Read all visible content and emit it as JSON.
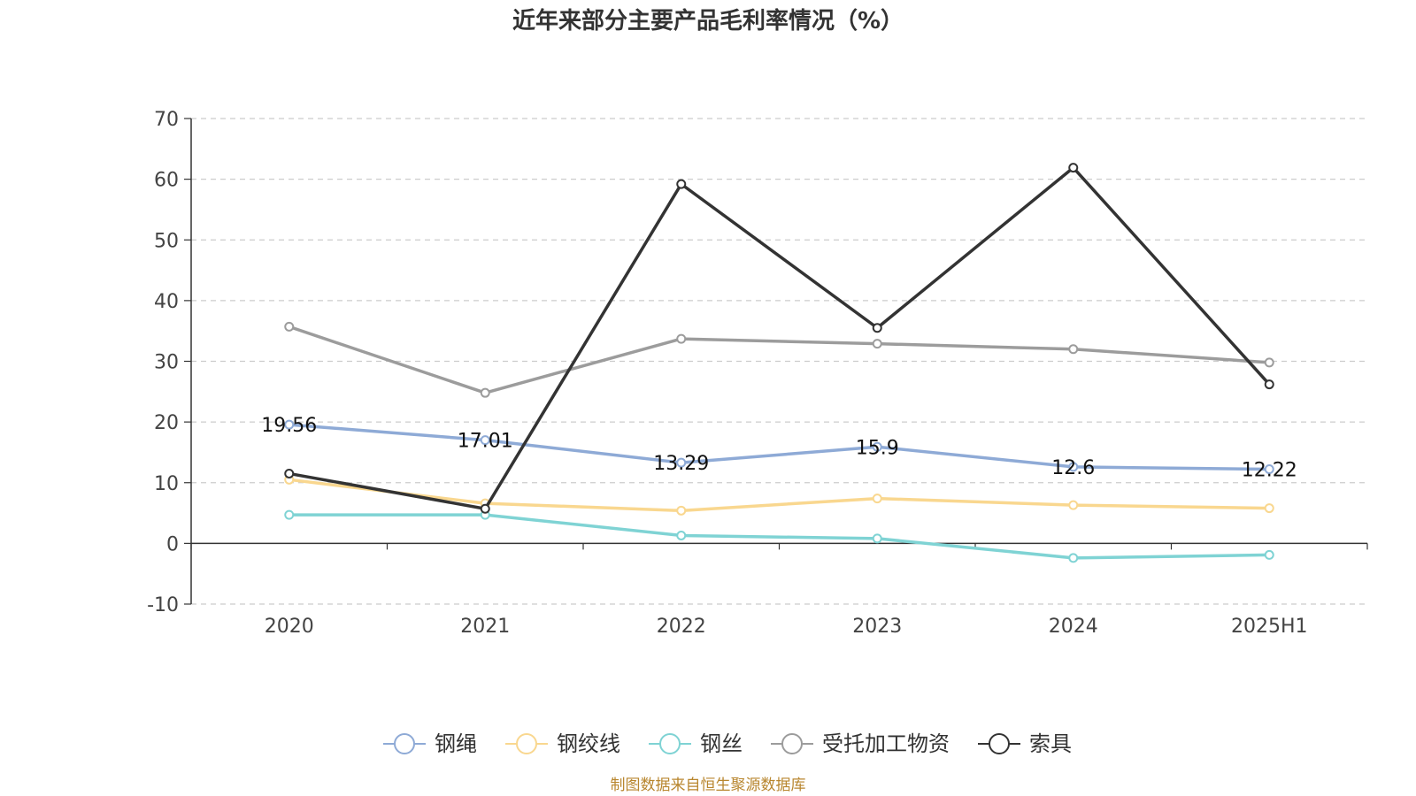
{
  "chart_data": {
    "type": "line",
    "title": "近年来部分主要产品毛利率情况（%）",
    "categories": [
      "2020",
      "2021",
      "2022",
      "2023",
      "2024",
      "2025H1"
    ],
    "ylim": [
      -10,
      70
    ],
    "yticks": [
      "70",
      "60",
      "50",
      "40",
      "30",
      "20",
      "10",
      "0",
      "-10"
    ],
    "grid": true,
    "legend_position": "bottom",
    "series": [
      {
        "name": "钢绳",
        "color": "#8eaad6",
        "values": [
          19.56,
          17.01,
          13.29,
          15.9,
          12.6,
          12.22
        ],
        "labels": [
          "19.56",
          "17.01",
          "13.29",
          "15.9",
          "12.6",
          "12.22"
        ]
      },
      {
        "name": "钢绞线",
        "color": "#f9d78f",
        "values": [
          10.5,
          6.6,
          5.4,
          7.4,
          6.3,
          5.8
        ]
      },
      {
        "name": "钢丝",
        "color": "#7fd3d4",
        "values": [
          4.7,
          4.7,
          1.3,
          0.8,
          -2.4,
          -1.9
        ]
      },
      {
        "name": "受托加工物资",
        "color": "#9c9c9c",
        "values": [
          35.7,
          24.8,
          33.7,
          32.9,
          32.0,
          29.8
        ]
      },
      {
        "name": "索具",
        "color": "#333333",
        "values": [
          11.5,
          5.7,
          59.2,
          35.5,
          61.9,
          26.2
        ]
      }
    ],
    "source": "制图数据来自恒生聚源数据库"
  }
}
